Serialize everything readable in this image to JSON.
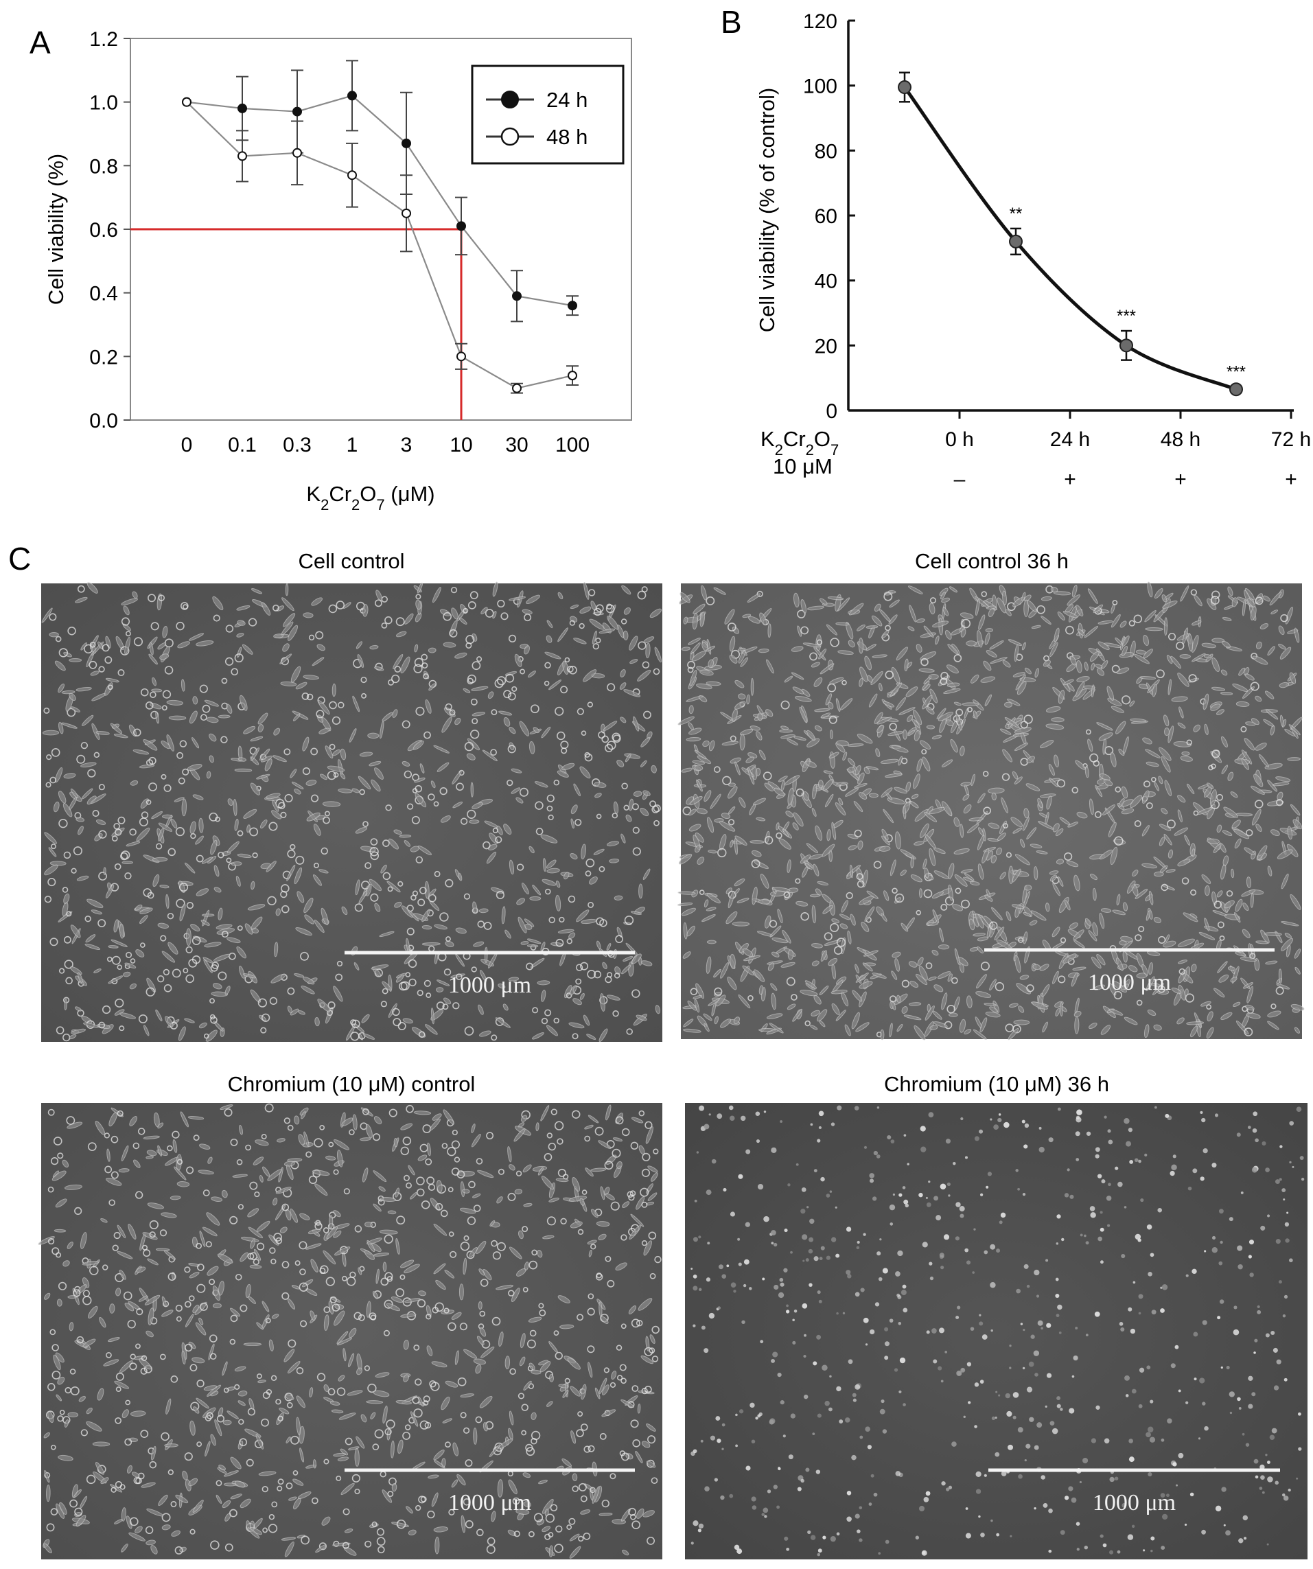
{
  "panels": {
    "a": {
      "letter": "A"
    },
    "b": {
      "letter": "B"
    },
    "c": {
      "letter": "C"
    }
  },
  "chart_data": [
    {
      "id": "A",
      "type": "line",
      "categories": [
        "0",
        "0.1",
        "0.3",
        "1",
        "3",
        "10",
        "30",
        "100"
      ],
      "xlabel": "K2Cr2O7 (μM)",
      "ylabel": "Cell viability (%)",
      "ylim": [
        0.0,
        1.2
      ],
      "yticks": [
        "0.0",
        "0.2",
        "0.4",
        "0.6",
        "0.8",
        "1.0",
        "1.2"
      ],
      "legend_position": "top-right",
      "grid": false,
      "series": [
        {
          "name": "24 h",
          "marker": "filled-circle",
          "values": [
            1.0,
            0.98,
            0.97,
            1.02,
            0.87,
            0.61,
            0.39,
            0.36
          ],
          "errors": [
            0,
            0.1,
            0.13,
            0.11,
            0.16,
            0.09,
            0.08,
            0.03
          ]
        },
        {
          "name": "48 h",
          "marker": "open-circle",
          "values": [
            1.0,
            0.83,
            0.84,
            0.77,
            0.65,
            0.2,
            0.1,
            0.14
          ],
          "errors": [
            0,
            0.08,
            0.1,
            0.1,
            0.12,
            0.04,
            0.015,
            0.03
          ]
        }
      ],
      "reference_lines": {
        "y": 0.6,
        "x_category": "10",
        "color": "#d62a2a"
      }
    },
    {
      "id": "B",
      "type": "line",
      "categories": [
        "0 h",
        "24 h",
        "48 h",
        "72 h"
      ],
      "treatment_label": "10 μM",
      "treatment": [
        "–",
        "+",
        "+",
        "+"
      ],
      "ylabel": "Cell viability (% of control)",
      "ylim": [
        0,
        120
      ],
      "yticks": [
        "0",
        "20",
        "40",
        "60",
        "80",
        "100",
        "120"
      ],
      "grid": false,
      "series": [
        {
          "values": [
            99.5,
            52,
            20,
            6.5
          ],
          "errors": [
            4.5,
            4,
            4.5,
            0.8
          ]
        }
      ],
      "significance": [
        "",
        "**",
        "***",
        "***"
      ]
    }
  ],
  "micrographs": [
    {
      "title": "Cell control",
      "scale": "1000 μm",
      "style": "sparse"
    },
    {
      "title": "Cell control 36 h",
      "scale": "1000 μm",
      "style": "dense"
    },
    {
      "title": "Chromium (10 μM) control",
      "scale": "1000 μm",
      "style": "sparse"
    },
    {
      "title": "Chromium (10 μM) 36 h",
      "scale": "1000 μm",
      "style": "debris"
    }
  ],
  "colors": {
    "ink": "#111111",
    "reference": "#d62a2a",
    "micro_bg": "#5e5e5e"
  }
}
